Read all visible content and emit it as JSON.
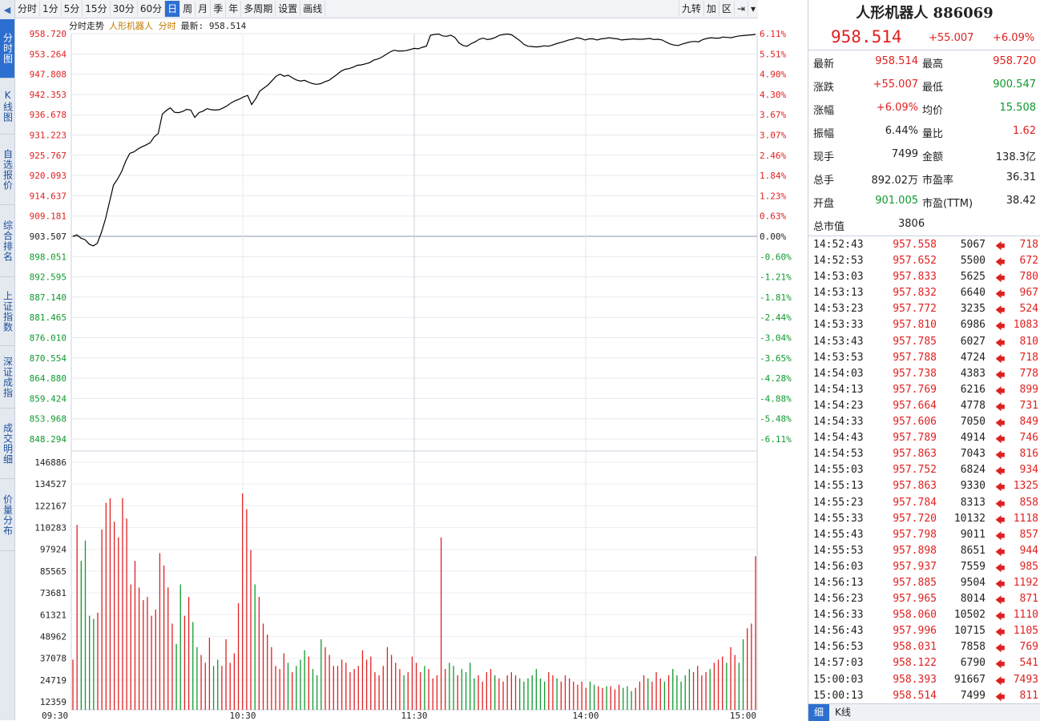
{
  "sidebar": {
    "collapse_arrow": "◀",
    "tabs": [
      {
        "label": "分时图",
        "active": true
      },
      {
        "label": "K线图",
        "active": false
      },
      {
        "label": "自选报价",
        "active": false
      },
      {
        "label": "综合排名",
        "active": false
      },
      {
        "label": "上证指数",
        "active": false
      },
      {
        "label": "深证成指",
        "active": false
      },
      {
        "label": "成交明细",
        "active": false
      },
      {
        "label": "价量分布",
        "active": false
      }
    ]
  },
  "toolbar": {
    "items": [
      "分时",
      "1分",
      "5分",
      "15分",
      "30分",
      "60分",
      "日",
      "周",
      "月",
      "季",
      "年",
      "多周期",
      "设置",
      "画线"
    ],
    "active_index": 6,
    "right_items": [
      "九转",
      "加",
      "区",
      "⇥",
      "▾"
    ]
  },
  "chart_header": {
    "title": "分时走势",
    "name": "人形机器人 分时",
    "last": "最新: 958.514"
  },
  "price_axis": {
    "left": [
      "958.720",
      "953.264",
      "947.808",
      "942.353",
      "936.678",
      "931.223",
      "925.767",
      "920.093",
      "914.637",
      "909.181",
      "903.507",
      "898.051",
      "892.595",
      "887.140",
      "881.465",
      "876.010",
      "870.554",
      "864.880",
      "859.424",
      "853.968",
      "848.294"
    ],
    "right": [
      "6.11%",
      "5.51%",
      "4.90%",
      "4.30%",
      "3.67%",
      "3.07%",
      "2.46%",
      "1.84%",
      "1.23%",
      "0.63%",
      "0.00%",
      "-0.60%",
      "-1.21%",
      "-1.81%",
      "-2.44%",
      "-3.04%",
      "-3.65%",
      "-4.28%",
      "-4.88%",
      "-5.48%",
      "-6.11%"
    ]
  },
  "volume_axis": [
    "146886",
    "134527",
    "122167",
    "110283",
    "97924",
    "85565",
    "73681",
    "61321",
    "48962",
    "37078",
    "24719",
    "12359"
  ],
  "time_axis": [
    "09:30",
    "10:30",
    "11:30",
    "14:00",
    "15:00"
  ],
  "colors": {
    "up": "#e02020",
    "down": "#0e9a2e",
    "line": "#000000",
    "accent": "#2d6fd1"
  },
  "chart_data": {
    "type": "line",
    "price_series": [
      903.5,
      903.9,
      903.0,
      902.6,
      901.4,
      900.9,
      901.6,
      904.5,
      908.2,
      912.8,
      917.5,
      919.1,
      921.2,
      924.0,
      926.1,
      926.5,
      927.3,
      927.9,
      928.4,
      929.0,
      930.6,
      931.5,
      936.8,
      937.8,
      938.5,
      937.3,
      937.2,
      937.5,
      938.1,
      937.9,
      935.9,
      937.2,
      937.6,
      938.3,
      938.0,
      937.9,
      938.0,
      938.5,
      939.1,
      939.9,
      940.5,
      940.9,
      941.5,
      941.9,
      939.4,
      941.0,
      943.1,
      943.9,
      944.7,
      945.9,
      947.1,
      947.7,
      947.1,
      947.4,
      946.7,
      946.1,
      945.8,
      946.0,
      945.5,
      945.1,
      944.9,
      945.1,
      945.6,
      946.0,
      946.8,
      947.6,
      948.5,
      949.0,
      949.2,
      949.6,
      950.1,
      950.2,
      950.5,
      950.8,
      951.5,
      951.8,
      952.3,
      953.0,
      953.7,
      954.2,
      954.0,
      954.0,
      954.1,
      954.4,
      954.7,
      954.6,
      955.0,
      955.3,
      958.3,
      958.5,
      958.6,
      958.1,
      958.0,
      958.3,
      957.7,
      956.2,
      955.5,
      955.3,
      956.0,
      956.5,
      957.2,
      957.5,
      957.1,
      957.3,
      957.7,
      958.3,
      958.5,
      958.6,
      958.4,
      957.6,
      956.8,
      955.8,
      955.3,
      955.2,
      955.1,
      955.2,
      955.4,
      955.3,
      955.6,
      956.0,
      956.3,
      956.6,
      957.0,
      957.2,
      957.6,
      957.4,
      957.0,
      957.3,
      957.3,
      957.0,
      957.3,
      957.4,
      957.6,
      957.4,
      957.3,
      957.0,
      957.1,
      957.2,
      957.3,
      957.2,
      957.2,
      957.3,
      957.4,
      957.1,
      957.2,
      957.0,
      956.4,
      955.9,
      955.6,
      955.5,
      955.9,
      956.2,
      956.5,
      956.6,
      956.5,
      957.1,
      957.4,
      957.6,
      957.5,
      957.5,
      957.8,
      957.7,
      957.6,
      957.9,
      958.1,
      958.2,
      958.3,
      958.4,
      958.5
    ],
    "price_min": 848.294,
    "price_max": 958.72,
    "prev_close": 903.507,
    "volume_series": [
      32000,
      118000,
      95000,
      108000,
      60000,
      58000,
      62000,
      115000,
      132000,
      135000,
      120000,
      110000,
      135000,
      122000,
      80000,
      95000,
      78000,
      70000,
      72000,
      60000,
      64000,
      100000,
      92000,
      78000,
      55000,
      42000,
      80000,
      60000,
      72000,
      56000,
      40000,
      35000,
      30000,
      46000,
      28000,
      32000,
      28000,
      45000,
      30000,
      36000,
      68000,
      138000,
      128000,
      102000,
      80000,
      72000,
      55000,
      48000,
      40000,
      28000,
      26000,
      36000,
      30000,
      24000,
      28000,
      32000,
      38000,
      34000,
      26000,
      22000,
      45000,
      40000,
      35000,
      28000,
      28000,
      32000,
      30000,
      24000,
      26000,
      28000,
      38000,
      32000,
      34000,
      24000,
      22000,
      28000,
      40000,
      35000,
      30000,
      26000,
      22000,
      24000,
      34000,
      30000,
      24000,
      28000,
      26000,
      20000,
      22000,
      110000,
      26000,
      30000,
      28000,
      22000,
      26000,
      24000,
      30000,
      20000,
      22000,
      18000,
      24000,
      26000,
      22000,
      20000,
      18000,
      22000,
      24000,
      22000,
      20000,
      18000,
      20000,
      22000,
      26000,
      20000,
      18000,
      24000,
      22000,
      20000,
      18000,
      22000,
      20000,
      18000,
      16000,
      18000,
      14000,
      18000,
      16000,
      15000,
      14000,
      15000,
      15000,
      13000,
      16000,
      14000,
      15000,
      12000,
      14000,
      18000,
      22000,
      20000,
      18000,
      24000,
      20000,
      18000,
      22000,
      26000,
      22000,
      18000,
      22000,
      26000,
      24000,
      28000,
      22000,
      24000,
      26000,
      30000,
      32000,
      34000,
      30000,
      40000,
      35000,
      30000,
      45000,
      52000,
      55000,
      98000
    ],
    "volume_max": 160000,
    "title": "分时走势"
  },
  "panel": {
    "title": "人形机器人 886069",
    "price": "958.514",
    "change": "+55.007",
    "pct": "+6.09%",
    "quote_rows": [
      {
        "l1": "最新",
        "v1": "958.514",
        "c1": "red",
        "l2": "最高",
        "v2": "958.720",
        "c2": "red"
      },
      {
        "l1": "涨跌",
        "v1": "+55.007",
        "c1": "red",
        "l2": "最低",
        "v2": "900.547",
        "c2": "green"
      },
      {
        "l1": "涨幅",
        "v1": "+6.09%",
        "c1": "red",
        "l2": "均价",
        "v2": "15.508",
        "c2": "green"
      },
      {
        "l1": "振幅",
        "v1": "6.44%",
        "c1": "black",
        "l2": "量比",
        "v2": "1.62",
        "c2": "red"
      },
      {
        "l1": "现手",
        "v1": "7499",
        "c1": "black",
        "l2": "金额",
        "v2": "138.3亿",
        "c2": "black"
      },
      {
        "l1": "总手",
        "v1": "892.02万",
        "c1": "black",
        "l2": "市盈率",
        "v2": "36.31",
        "c2": "black"
      },
      {
        "l1": "开盘",
        "v1": "901.005",
        "c1": "green",
        "l2": "市盈(TTM)",
        "v2": "38.42",
        "c2": "black"
      },
      {
        "l1": "总市值",
        "v1": "3806",
        "c1": "black",
        "l2": "",
        "v2": "",
        "c2": "black"
      }
    ],
    "ticks": [
      {
        "t": "14:52:43",
        "p": "957.558",
        "v": "5067",
        "n": "718"
      },
      {
        "t": "14:52:53",
        "p": "957.652",
        "v": "5500",
        "n": "672"
      },
      {
        "t": "14:53:03",
        "p": "957.833",
        "v": "5625",
        "n": "780"
      },
      {
        "t": "14:53:13",
        "p": "957.832",
        "v": "6640",
        "n": "967"
      },
      {
        "t": "14:53:23",
        "p": "957.772",
        "v": "3235",
        "n": "524"
      },
      {
        "t": "14:53:33",
        "p": "957.810",
        "v": "6986",
        "n": "1083"
      },
      {
        "t": "14:53:43",
        "p": "957.785",
        "v": "6027",
        "n": "810"
      },
      {
        "t": "14:53:53",
        "p": "957.788",
        "v": "4724",
        "n": "718"
      },
      {
        "t": "14:54:03",
        "p": "957.738",
        "v": "4383",
        "n": "778"
      },
      {
        "t": "14:54:13",
        "p": "957.769",
        "v": "6216",
        "n": "899"
      },
      {
        "t": "14:54:23",
        "p": "957.664",
        "v": "4778",
        "n": "731"
      },
      {
        "t": "14:54:33",
        "p": "957.606",
        "v": "7050",
        "n": "849"
      },
      {
        "t": "14:54:43",
        "p": "957.789",
        "v": "4914",
        "n": "746"
      },
      {
        "t": "14:54:53",
        "p": "957.863",
        "v": "7043",
        "n": "816"
      },
      {
        "t": "14:55:03",
        "p": "957.752",
        "v": "6824",
        "n": "934"
      },
      {
        "t": "14:55:13",
        "p": "957.863",
        "v": "9330",
        "n": "1325"
      },
      {
        "t": "14:55:23",
        "p": "957.784",
        "v": "8313",
        "n": "858"
      },
      {
        "t": "14:55:33",
        "p": "957.720",
        "v": "10132",
        "n": "1118"
      },
      {
        "t": "14:55:43",
        "p": "957.798",
        "v": "9011",
        "n": "857"
      },
      {
        "t": "14:55:53",
        "p": "957.898",
        "v": "8651",
        "n": "944"
      },
      {
        "t": "14:56:03",
        "p": "957.937",
        "v": "7559",
        "n": "985"
      },
      {
        "t": "14:56:13",
        "p": "957.885",
        "v": "9504",
        "n": "1192"
      },
      {
        "t": "14:56:23",
        "p": "957.965",
        "v": "8014",
        "n": "871"
      },
      {
        "t": "14:56:33",
        "p": "958.060",
        "v": "10502",
        "n": "1110"
      },
      {
        "t": "14:56:43",
        "p": "957.996",
        "v": "10715",
        "n": "1105"
      },
      {
        "t": "14:56:53",
        "p": "958.031",
        "v": "7858",
        "n": "769"
      },
      {
        "t": "14:57:03",
        "p": "958.122",
        "v": "6790",
        "n": "541"
      },
      {
        "t": "15:00:03",
        "p": "958.393",
        "v": "91667",
        "n": "7493"
      },
      {
        "t": "15:00:13",
        "p": "958.514",
        "v": "7499",
        "n": "811"
      }
    ],
    "tick_arrow": "🡄",
    "bottom_tabs": [
      "细",
      "K线"
    ]
  }
}
